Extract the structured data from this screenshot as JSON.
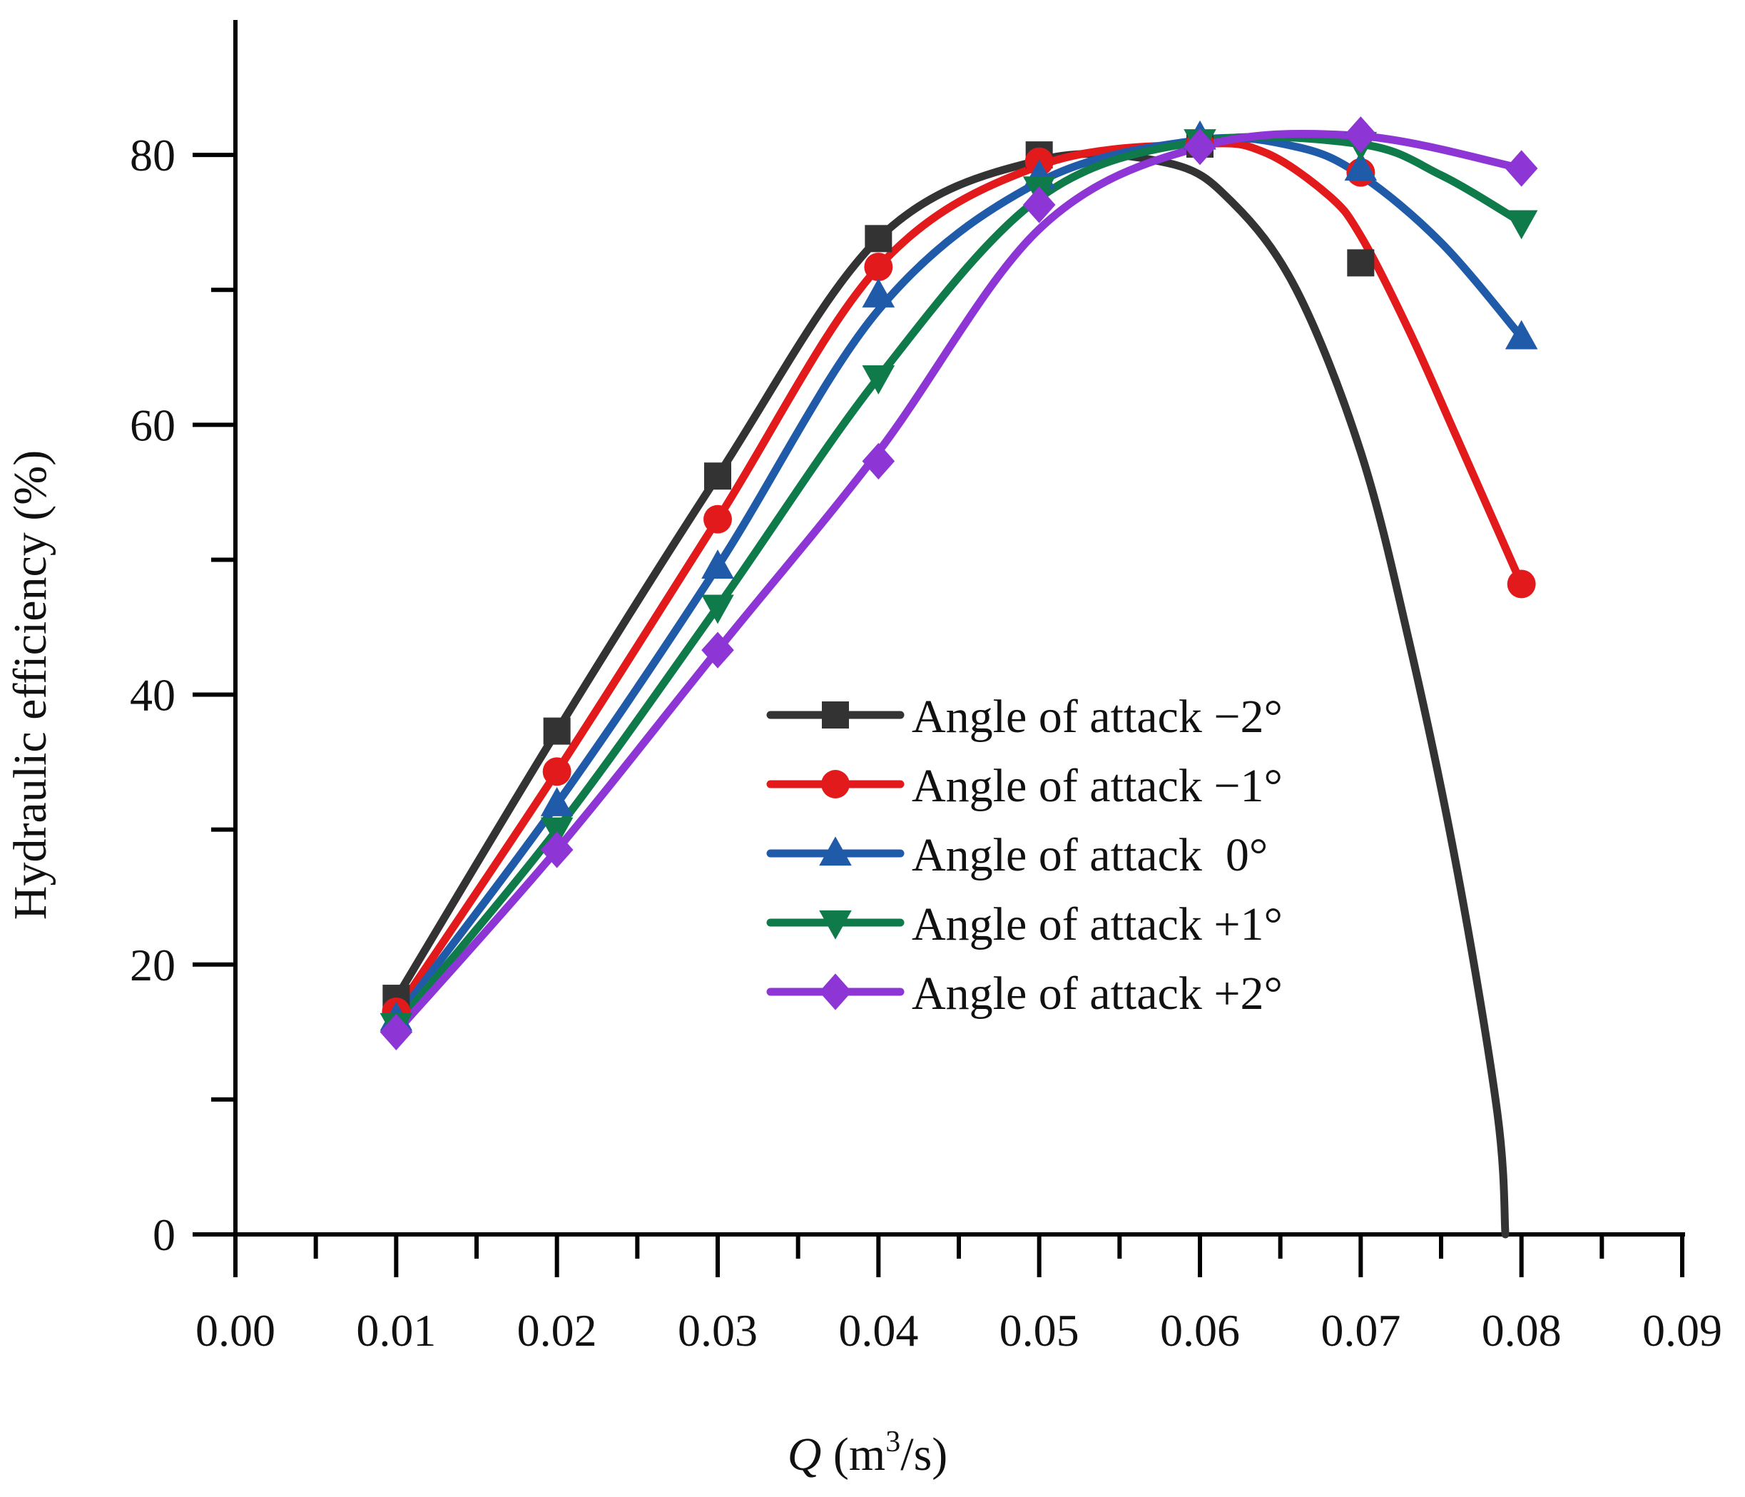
{
  "chart_data": {
    "type": "line",
    "title": "",
    "xlabel": {
      "symbol": "Q",
      "unit_prefix": " (m",
      "unit_sup": "3",
      "unit_suffix": "/s)"
    },
    "ylabel": "Hydraulic efficiency (%)",
    "xlim": [
      0,
      0.09
    ],
    "ylim": [
      0,
      90
    ],
    "x_ticks": [
      "0.00",
      "0.01",
      "0.02",
      "0.03",
      "0.04",
      "0.05",
      "0.06",
      "0.07",
      "0.08",
      "0.09"
    ],
    "y_ticks": [
      "0",
      "20",
      "40",
      "60",
      "80"
    ],
    "legend_position": "center-right",
    "grid": false,
    "series": [
      {
        "name": "Angle of attack −2°",
        "color": "#333333",
        "marker": "square",
        "x": [
          0.01,
          0.02,
          0.03,
          0.04,
          0.05,
          0.06,
          0.07
        ],
        "y": [
          17.5,
          37.3,
          56.2,
          73.8,
          80.0,
          80.8,
          72.0
        ],
        "curve_x": [
          0.01,
          0.02,
          0.03,
          0.04,
          0.05,
          0.058,
          0.062,
          0.066,
          0.07,
          0.073,
          0.076,
          0.0785,
          0.079
        ],
        "curve_y": [
          17.5,
          37.3,
          56.2,
          73.8,
          79.6,
          79.4,
          76.5,
          70.0,
          58.0,
          44.0,
          27.0,
          9.0,
          0
        ]
      },
      {
        "name": "Angle of attack −1°",
        "color": "#e31a1c",
        "marker": "circle",
        "x": [
          0.01,
          0.02,
          0.03,
          0.04,
          0.05,
          0.06,
          0.07,
          0.08
        ],
        "y": [
          16.5,
          34.3,
          53.0,
          71.7,
          79.5,
          80.8,
          78.7,
          48.2
        ],
        "curve_x": [
          0.01,
          0.02,
          0.03,
          0.04,
          0.05,
          0.06,
          0.064,
          0.068,
          0.07,
          0.073,
          0.076,
          0.08
        ],
        "curve_y": [
          16.5,
          34.3,
          53.0,
          71.7,
          79.2,
          80.8,
          80.2,
          77.0,
          74.0,
          67.0,
          59.0,
          48.2
        ]
      },
      {
        "name": "Angle of attack  0°",
        "color": "#1f5ba8",
        "marker": "triangle-up",
        "x": [
          0.01,
          0.02,
          0.03,
          0.04,
          0.05,
          0.06,
          0.07,
          0.08
        ],
        "y": [
          16.0,
          31.9,
          49.5,
          69.6,
          78.4,
          81.3,
          79.0,
          66.5
        ],
        "curve_x": [
          0.01,
          0.02,
          0.03,
          0.04,
          0.05,
          0.06,
          0.066,
          0.07,
          0.075,
          0.08
        ],
        "curve_y": [
          16.0,
          31.9,
          49.5,
          68.5,
          78.0,
          81.1,
          80.6,
          78.5,
          73.5,
          66.5
        ]
      },
      {
        "name": "Angle of attack +1°",
        "color": "#0f7a4a",
        "marker": "triangle-down",
        "x": [
          0.01,
          0.02,
          0.03,
          0.04,
          0.05,
          0.06,
          0.07,
          0.08
        ],
        "y": [
          15.5,
          30.0,
          46.5,
          63.5,
          77.5,
          81.0,
          80.8,
          75.0
        ],
        "curve_x": [
          0.01,
          0.02,
          0.03,
          0.04,
          0.05,
          0.06,
          0.07,
          0.075,
          0.08
        ],
        "curve_y": [
          15.5,
          30.0,
          46.5,
          63.5,
          76.8,
          81.0,
          80.8,
          78.5,
          75.0
        ]
      },
      {
        "name": "Angle of attack +2°",
        "color": "#8e35d6",
        "marker": "diamond",
        "x": [
          0.01,
          0.02,
          0.03,
          0.04,
          0.05,
          0.06,
          0.07,
          0.08
        ],
        "y": [
          15.0,
          28.5,
          43.3,
          57.3,
          76.3,
          80.6,
          81.5,
          79.0
        ],
        "curve_x": [
          0.01,
          0.02,
          0.03,
          0.04,
          0.05,
          0.06,
          0.07,
          0.08
        ],
        "curve_y": [
          15.0,
          28.5,
          43.3,
          58.0,
          74.5,
          80.6,
          81.4,
          79.0
        ]
      }
    ]
  }
}
